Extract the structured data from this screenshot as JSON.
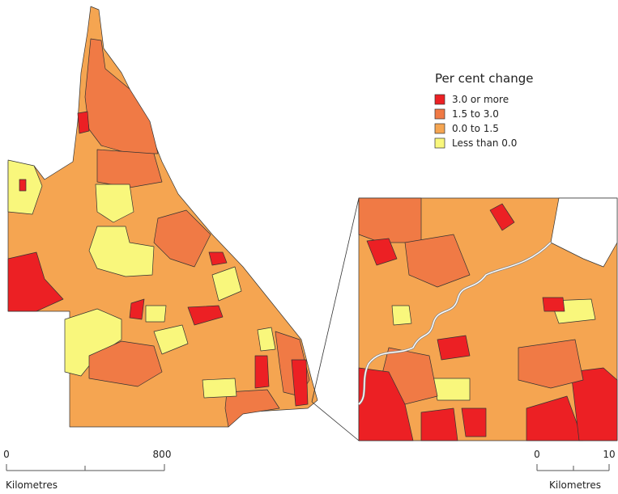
{
  "legend": {
    "title": "Per cent change",
    "items": [
      {
        "label": "3.0 or more",
        "color": "#ec2024"
      },
      {
        "label": "1.5 to 3.0",
        "color": "#f07a45"
      },
      {
        "label": "0.0 to 1.5",
        "color": "#f5a551"
      },
      {
        "label": "Less than 0.0",
        "color": "#f9f77c"
      }
    ]
  },
  "scale_bars": [
    {
      "ticks": [
        "0",
        "800"
      ],
      "unit": "Kilometres"
    },
    {
      "ticks": [
        "0",
        "10"
      ],
      "unit": "Kilometres"
    }
  ]
}
